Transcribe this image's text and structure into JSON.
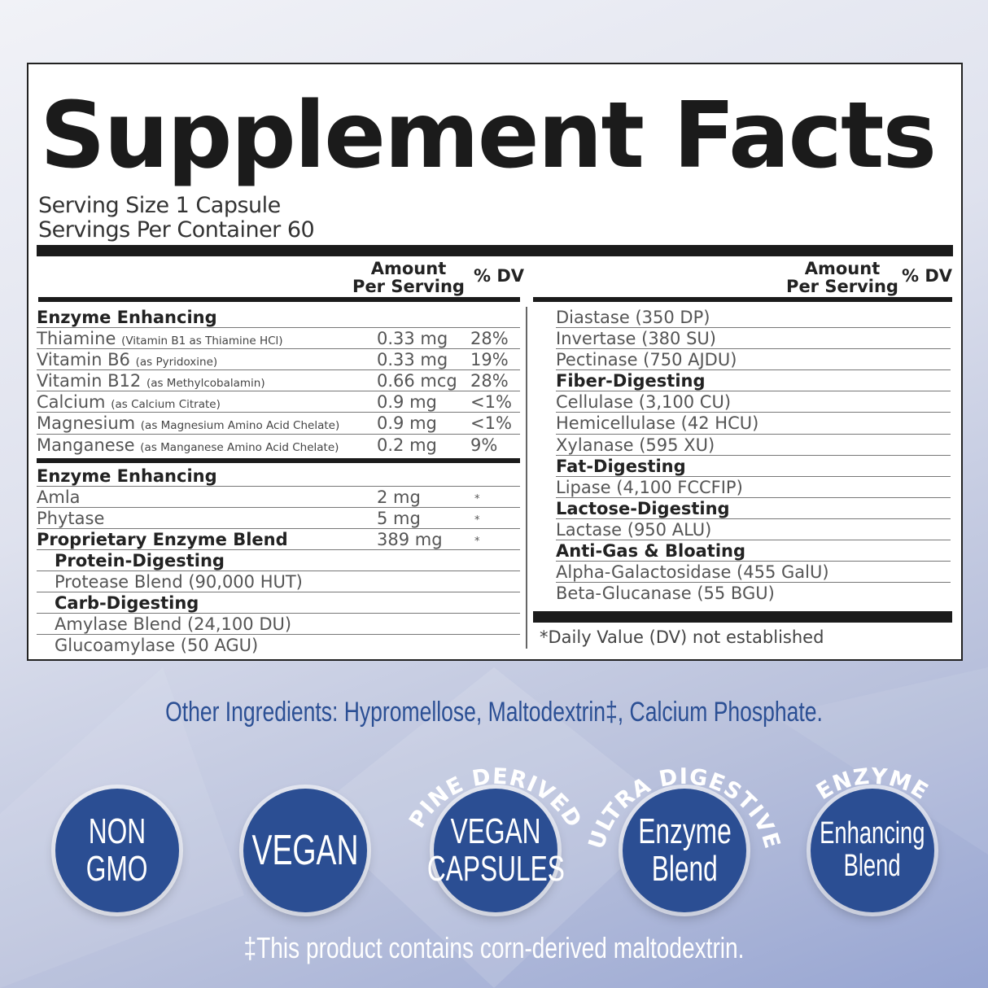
{
  "title": "Supplement Facts",
  "serving_size": "Serving Size 1 Capsule",
  "servings_per_container": "Servings Per Container 60",
  "headers": {
    "amount_line1": "Amount",
    "amount_line2": "Per Serving",
    "dv": "% DV"
  },
  "left_rows": [
    {
      "type": "head",
      "name": "Enzyme Enhancing"
    },
    {
      "name": "Thiamine",
      "sub": "(Vitamin B1 as Thiamine HCl)",
      "amount": "0.33 mg",
      "dv": "28%"
    },
    {
      "name": "Vitamin B6",
      "sub": "(as Pyridoxine)",
      "amount": "0.33 mg",
      "dv": "19%"
    },
    {
      "name": "Vitamin B12",
      "sub": "(as Methylcobalamin)",
      "amount": "0.66 mcg",
      "dv": "28%"
    },
    {
      "name": "Calcium",
      "sub": "(as Calcium Citrate)",
      "amount": "0.9 mg",
      "dv": "<1%"
    },
    {
      "name": "Magnesium",
      "sub": "(as Magnesium Amino Acid Chelate)",
      "amount": "0.9 mg",
      "dv": "<1%"
    },
    {
      "name": "Manganese",
      "sub": "(as Manganese Amino Acid Chelate)",
      "amount": "0.2 mg",
      "dv": "9%",
      "noline": true
    },
    {
      "type": "sep"
    },
    {
      "type": "head",
      "name": "Enzyme Enhancing"
    },
    {
      "name": "Amla",
      "amount": "2 mg",
      "dv": "*"
    },
    {
      "name": "Phytase",
      "amount": "5 mg",
      "dv": "*"
    },
    {
      "type": "head",
      "name": "Proprietary Enzyme Blend",
      "amount": "389 mg",
      "dv": "*"
    },
    {
      "type": "head",
      "indent": true,
      "name": "Protein-Digesting"
    },
    {
      "indent": true,
      "name": "Protease Blend (90,000 HUT)"
    },
    {
      "type": "head",
      "indent": true,
      "name": "Carb-Digesting"
    },
    {
      "indent": true,
      "name": "Amylase Blend (24,100 DU)"
    },
    {
      "indent": true,
      "name": "Glucoamylase (50 AGU)",
      "noline": true
    }
  ],
  "right_rows": [
    {
      "name": "Diastase (350 DP)"
    },
    {
      "name": "Invertase  (380 SU)"
    },
    {
      "name": "Pectinase (750 AJDU)"
    },
    {
      "type": "head",
      "name": "Fiber-Digesting"
    },
    {
      "name": "Cellulase (3,100 CU)"
    },
    {
      "name": "Hemicellulase (42 HCU)"
    },
    {
      "name": "Xylanase (595 XU)"
    },
    {
      "type": "head",
      "name": "Fat-Digesting"
    },
    {
      "name": "Lipase (4,100 FCCFIP)"
    },
    {
      "type": "head",
      "name": "Lactose-Digesting"
    },
    {
      "name": "Lactase (950 ALU)"
    },
    {
      "type": "head",
      "name": "Anti-Gas & Bloating"
    },
    {
      "name": "Alpha-Galactosidase (455 GalU)"
    },
    {
      "name": "Beta-Glucanase (55 BGU)",
      "noline": true
    }
  ],
  "footnote": "*Daily Value (DV) not established",
  "other_ingredients": "Other Ingredients: Hypromellose, Maltodextrin‡, Calcium Phosphate.",
  "badges": [
    {
      "arc": "",
      "lines": [
        "NON",
        "GMO"
      ]
    },
    {
      "arc": "",
      "lines": [
        "VEGAN"
      ]
    },
    {
      "arc": "PINE DERIVED",
      "lines": [
        "VEGAN",
        "CAPSULES"
      ]
    },
    {
      "arc": "ULTRA DIGESTIVE",
      "lines": [
        "Enzyme",
        "Blend"
      ]
    },
    {
      "arc": "ENZYME",
      "lines": [
        "Enhancing",
        "Blend"
      ]
    }
  ],
  "maltodextrin_note": "‡This product contains corn-derived maltodextrin.",
  "colors": {
    "badge": "#2b4e93",
    "text_blue": "#2b4f94",
    "label_black": "#1b1b1b"
  }
}
